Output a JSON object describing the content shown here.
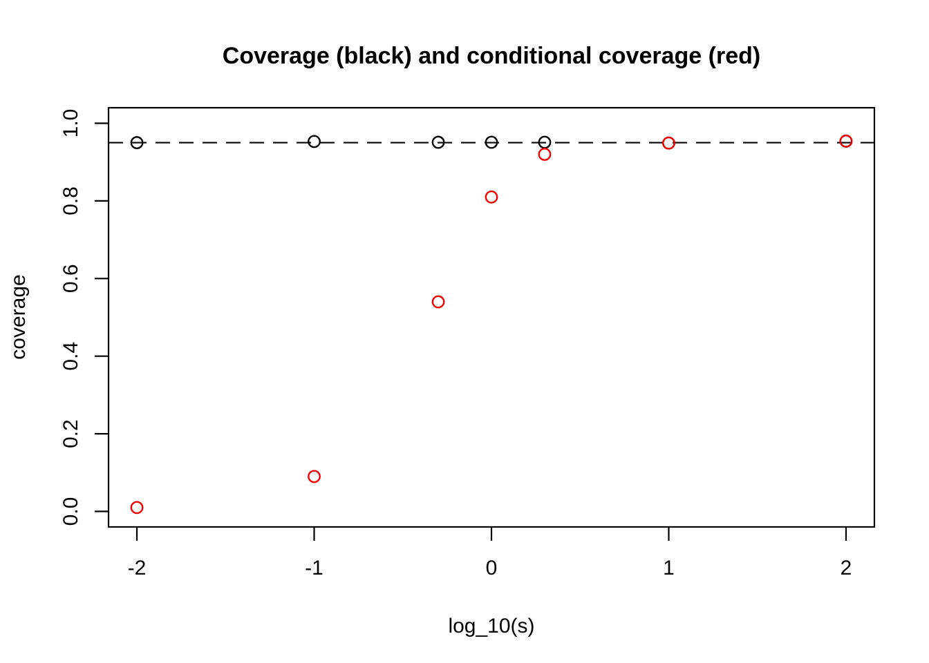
{
  "page": {
    "background_color": "#ffffff",
    "foreground_color": "#000000"
  },
  "chart_data": {
    "type": "scatter",
    "title": "Coverage (black) and conditional coverage (red)",
    "xlabel": "log_10(s)",
    "ylabel": "coverage",
    "xlim": [
      -2.16,
      2.16
    ],
    "ylim": [
      -0.04,
      1.04
    ],
    "x_tick_values": [
      -2,
      -1,
      0,
      1,
      2
    ],
    "x_tick_labels": [
      "-2",
      "-1",
      "0",
      "1",
      "2"
    ],
    "y_tick_values": [
      0.0,
      0.2,
      0.4,
      0.6,
      0.8,
      1.0
    ],
    "y_tick_labels": [
      "0.0",
      "0.2",
      "0.4",
      "0.6",
      "0.8",
      "1.0"
    ],
    "grid": false,
    "legend_position": "none",
    "marker": "open-circle",
    "reference_line": {
      "y": 0.95,
      "style": "dashed",
      "color": "#000000"
    },
    "x": [
      -2,
      -1,
      -0.3,
      0,
      0.3,
      1,
      2
    ],
    "series": [
      {
        "name": "coverage (black)",
        "color": "#000000",
        "values": [
          0.95,
          0.953,
          0.951,
          0.951,
          0.951,
          0.949,
          0.954
        ]
      },
      {
        "name": "conditional coverage (red)",
        "color": "#f20000",
        "values": [
          0.01,
          0.09,
          0.54,
          0.81,
          0.92,
          0.949,
          0.954
        ]
      }
    ]
  }
}
